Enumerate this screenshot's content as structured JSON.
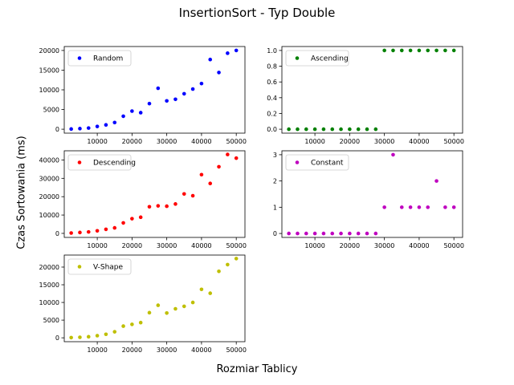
{
  "title": "InsertionSort - Typ Double",
  "xlabel": "Rozmiar Tablicy",
  "ylabel": "Czas Sortowania (ms)",
  "chart_data": [
    {
      "type": "scatter",
      "legend": "top-left",
      "series": [
        {
          "name": "Random",
          "color": "#0000ff",
          "x": [
            2500,
            5000,
            7500,
            10000,
            12500,
            15000,
            17500,
            20000,
            22500,
            25000,
            27500,
            30000,
            32500,
            35000,
            37500,
            40000,
            42500,
            45000,
            47500,
            50000
          ],
          "y": [
            50,
            150,
            300,
            700,
            1100,
            1700,
            3300,
            4600,
            4200,
            6500,
            10400,
            7200,
            7600,
            9000,
            10200,
            11600,
            17700,
            14400,
            19300,
            20000
          ]
        }
      ],
      "xticks": [
        "10000",
        "20000",
        "30000",
        "40000",
        "50000"
      ],
      "yticks": [
        "0",
        "5000",
        "10000",
        "15000",
        "20000"
      ],
      "xlim": [
        500,
        52500
      ],
      "ylim": [
        -1000,
        21000
      ]
    },
    {
      "type": "scatter",
      "legend": "top-left",
      "series": [
        {
          "name": "Ascending",
          "color": "#008000",
          "x": [
            2500,
            5000,
            7500,
            10000,
            12500,
            15000,
            17500,
            20000,
            22500,
            25000,
            27500,
            30000,
            32500,
            35000,
            37500,
            40000,
            42500,
            45000,
            47500,
            50000
          ],
          "y": [
            0,
            0,
            0,
            0,
            0,
            0,
            0,
            0,
            0,
            0,
            0,
            1,
            1,
            1,
            1,
            1,
            1,
            1,
            1,
            1
          ]
        }
      ],
      "xticks": [
        "10000",
        "20000",
        "30000",
        "40000",
        "50000"
      ],
      "yticks": [
        "0.0",
        "0.2",
        "0.4",
        "0.6",
        "0.8",
        "1.0"
      ],
      "xlim": [
        500,
        52500
      ],
      "ylim": [
        -0.05,
        1.05
      ]
    },
    {
      "type": "scatter",
      "legend": "top-left",
      "series": [
        {
          "name": "Descending",
          "color": "#ff0000",
          "x": [
            2500,
            5000,
            7500,
            10000,
            12500,
            15000,
            17500,
            20000,
            22500,
            25000,
            27500,
            30000,
            32500,
            35000,
            37500,
            40000,
            42500,
            45000,
            47500,
            50000
          ],
          "y": [
            200,
            500,
            800,
            1400,
            2200,
            3000,
            5700,
            8000,
            8800,
            14500,
            15000,
            14800,
            16000,
            21500,
            20500,
            32000,
            27200,
            36300,
            43000,
            41000
          ]
        }
      ],
      "xticks": [
        "10000",
        "20000",
        "30000",
        "40000",
        "50000"
      ],
      "yticks": [
        "0",
        "10000",
        "20000",
        "30000",
        "40000"
      ],
      "xlim": [
        500,
        52500
      ],
      "ylim": [
        -2200,
        45000
      ]
    },
    {
      "type": "scatter",
      "legend": "top-left",
      "series": [
        {
          "name": "Constant",
          "color": "#bf00bf",
          "x": [
            2500,
            5000,
            7500,
            10000,
            12500,
            15000,
            17500,
            20000,
            22500,
            25000,
            27500,
            30000,
            32500,
            35000,
            37500,
            40000,
            42500,
            45000,
            47500,
            50000
          ],
          "y": [
            0,
            0,
            0,
            0,
            0,
            0,
            0,
            0,
            0,
            0,
            0,
            1,
            3,
            1,
            1,
            1,
            1,
            2,
            1,
            1
          ]
        }
      ],
      "xticks": [
        "10000",
        "20000",
        "30000",
        "40000",
        "50000"
      ],
      "yticks": [
        "0",
        "1",
        "2",
        "3"
      ],
      "xlim": [
        500,
        52500
      ],
      "ylim": [
        -0.15,
        3.15
      ]
    },
    {
      "type": "scatter",
      "legend": "top-left",
      "series": [
        {
          "name": "V-Shape",
          "color": "#bfbf00",
          "x": [
            2500,
            5000,
            7500,
            10000,
            12500,
            15000,
            17500,
            20000,
            22500,
            25000,
            27500,
            30000,
            32500,
            35000,
            37500,
            40000,
            42500,
            45000,
            47500,
            50000
          ],
          "y": [
            50,
            150,
            300,
            600,
            1000,
            1700,
            3300,
            3800,
            4300,
            7100,
            9200,
            7000,
            8200,
            8900,
            10000,
            13700,
            12600,
            18800,
            20700,
            22400
          ]
        }
      ],
      "xticks": [
        "10000",
        "20000",
        "30000",
        "40000",
        "50000"
      ],
      "yticks": [
        "0",
        "5000",
        "10000",
        "15000",
        "20000"
      ],
      "xlim": [
        500,
        52500
      ],
      "ylim": [
        -1100,
        23400
      ]
    }
  ]
}
